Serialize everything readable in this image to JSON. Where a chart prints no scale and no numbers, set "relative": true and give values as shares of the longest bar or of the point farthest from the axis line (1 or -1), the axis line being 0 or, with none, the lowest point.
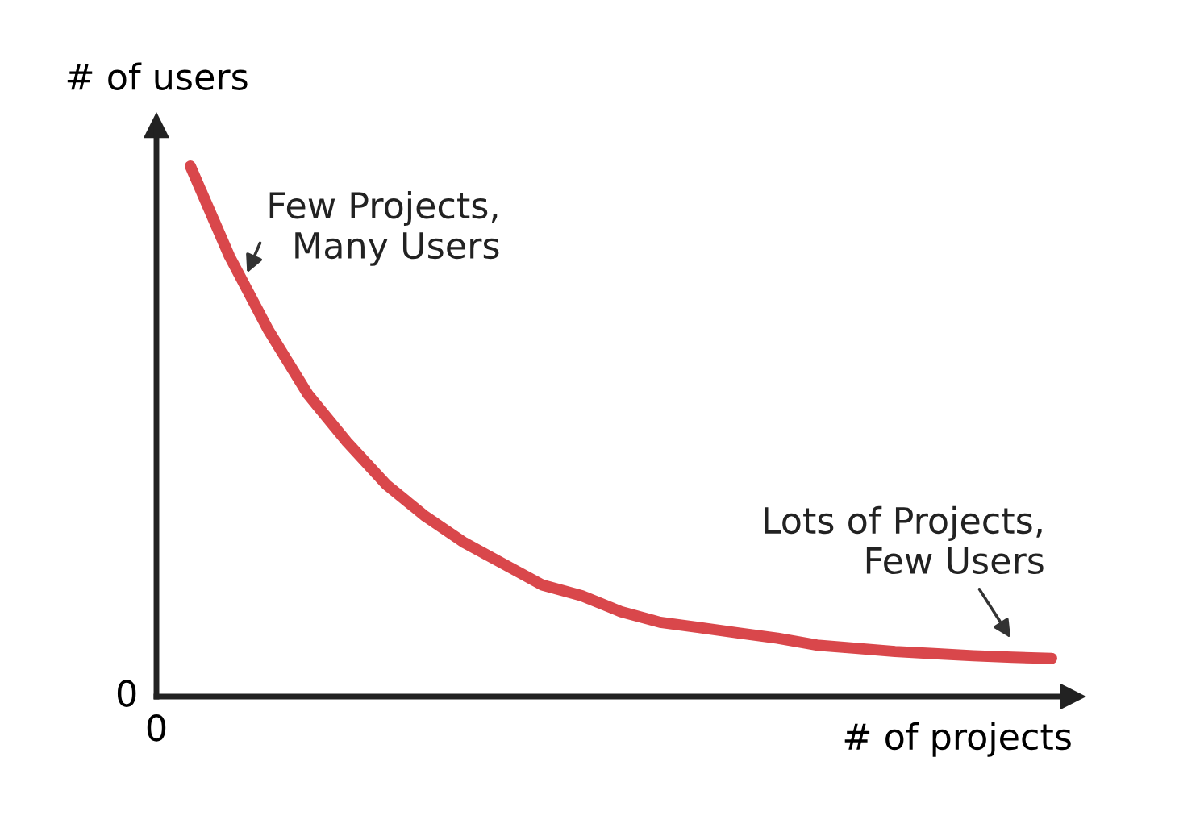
{
  "chart_data": {
    "type": "line",
    "relative": true,
    "xlabel": "# of projects",
    "ylabel": "# of users",
    "categories": [
      null,
      null,
      null,
      null,
      null,
      null,
      null,
      null,
      null,
      null,
      null,
      null,
      null,
      null,
      null,
      null,
      null,
      null,
      null,
      null,
      null,
      null,
      null
    ],
    "series": [
      {
        "color": "#d9474b",
        "values": [
          1,
          0.83,
          0.69,
          0.57,
          0.48,
          0.4,
          0.34,
          0.29,
          0.25,
          0.21,
          0.19,
          0.16,
          0.14,
          0.13,
          0.12,
          0.11,
          0.097,
          0.091,
          0.085,
          0.081,
          0.077,
          0.074,
          0.072
        ]
      }
    ],
    "annotations": [
      "Few Projects,\nMany Users",
      "Lots of Projects,\nFew Users",
      "0",
      "0"
    ],
    "marker": "none",
    "line_style": "solid"
  }
}
